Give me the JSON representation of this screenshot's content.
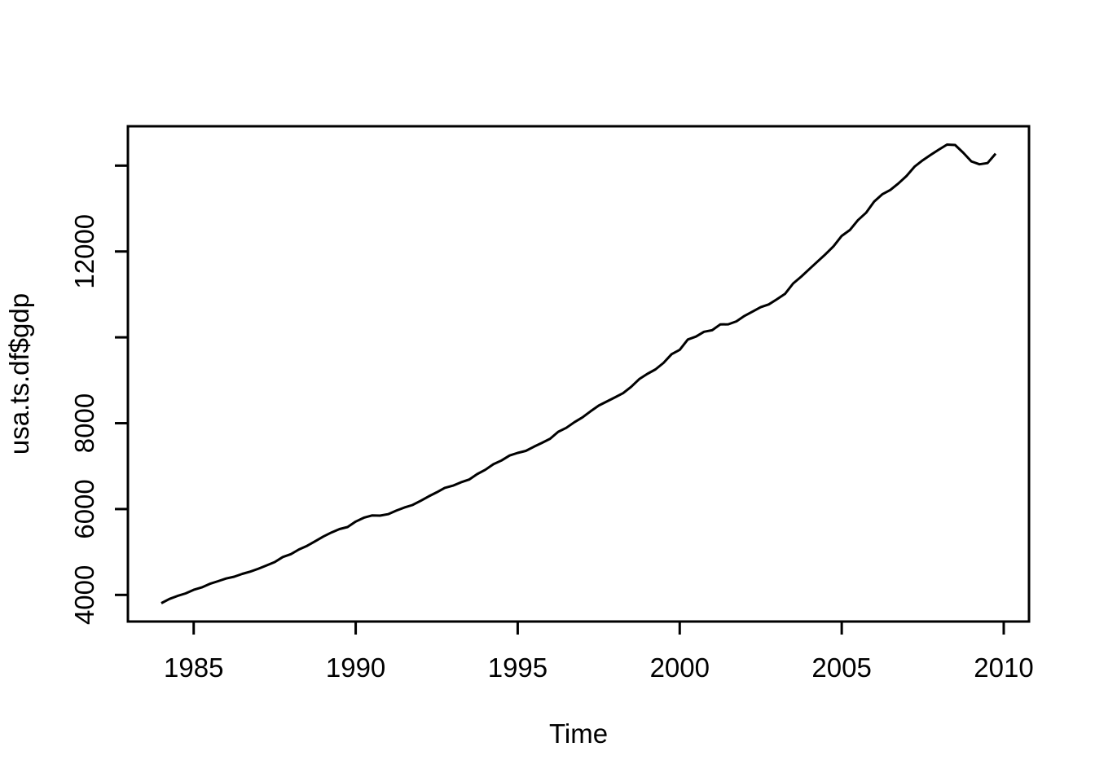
{
  "figure": {
    "background_color": "#ffffff",
    "line_color": "#000000",
    "text_color": "#000000"
  },
  "chart_data": {
    "type": "line",
    "title": "",
    "xlabel": "Time",
    "ylabel": "usa.ts.df$gdp",
    "xlim": [
      1982.97,
      2010.78
    ],
    "ylim": [
      3380,
      14917
    ],
    "grid": false,
    "legend": false,
    "x_ticks": [
      1985,
      1990,
      1995,
      2000,
      2005,
      2010
    ],
    "x_tick_labels": [
      "1985",
      "1990",
      "1995",
      "2000",
      "2005",
      "2010"
    ],
    "y_ticks": [
      4000,
      6000,
      8000,
      10000,
      12000,
      14000
    ],
    "y_tick_labels": [
      "4000",
      "6000",
      "8000",
      "",
      "12000",
      ""
    ],
    "series": [
      {
        "name": "usa.ts.df$gdp",
        "color": "#000000",
        "x_start": 1984.0,
        "x_step": 0.25,
        "frequency": "quarterly",
        "values": [
          3807,
          3906,
          3976,
          4034,
          4118,
          4176,
          4258,
          4319,
          4382,
          4423,
          4491,
          4543,
          4611,
          4687,
          4765,
          4883,
          4949,
          5059,
          5143,
          5251,
          5360,
          5454,
          5533,
          5582,
          5708,
          5797,
          5851,
          5846,
          5880,
          5962,
          6034,
          6093,
          6191,
          6295,
          6390,
          6494,
          6545,
          6623,
          6688,
          6814,
          6916,
          7044,
          7132,
          7248,
          7308,
          7356,
          7453,
          7543,
          7638,
          7800,
          7893,
          8023,
          8137,
          8277,
          8410,
          8506,
          8601,
          8699,
          8847,
          9028,
          9149,
          9253,
          9405,
          9608,
          9710,
          9949,
          10018,
          10130,
          10165,
          10301,
          10305,
          10373,
          10499,
          10602,
          10702,
          10767,
          10887,
          11012,
          11255,
          11415,
          11590,
          11763,
          11936,
          12124,
          12362,
          12500,
          12729,
          12901,
          13161,
          13330,
          13433,
          13584,
          13759,
          13977,
          14126,
          14253,
          14374,
          14490,
          14480,
          14300,
          14100,
          14030,
          14060,
          14280
        ]
      }
    ]
  }
}
